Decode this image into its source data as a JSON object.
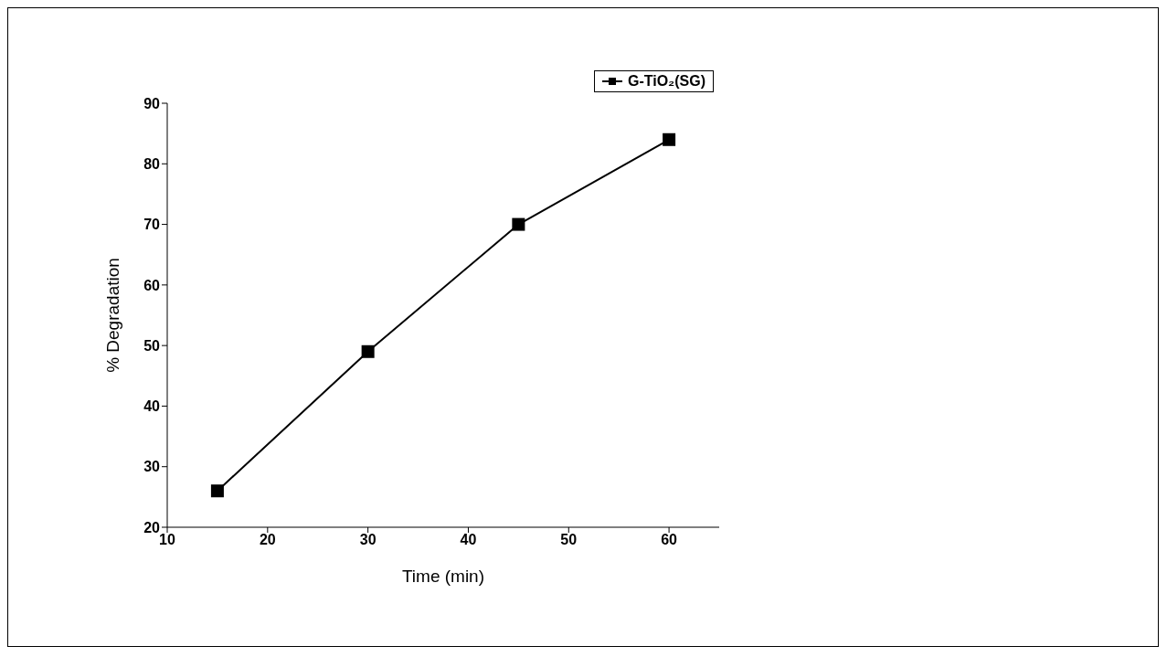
{
  "chart_data": {
    "type": "line",
    "xlabel": "Time (min)",
    "ylabel": "% Degradation",
    "x": [
      15,
      30,
      45,
      60
    ],
    "series": [
      {
        "name": "G-TiO₂(SG)",
        "color": "#000000",
        "values": [
          26,
          49,
          70,
          84
        ]
      }
    ],
    "xlim": [
      10,
      65
    ],
    "xticks": [
      10,
      20,
      30,
      40,
      50,
      60
    ],
    "ylim": [
      20,
      90
    ],
    "yticks": [
      20,
      30,
      40,
      50,
      60,
      70,
      80,
      90
    ],
    "grid": false,
    "legend": "top right",
    "marker": "square",
    "line_style": "solid"
  }
}
